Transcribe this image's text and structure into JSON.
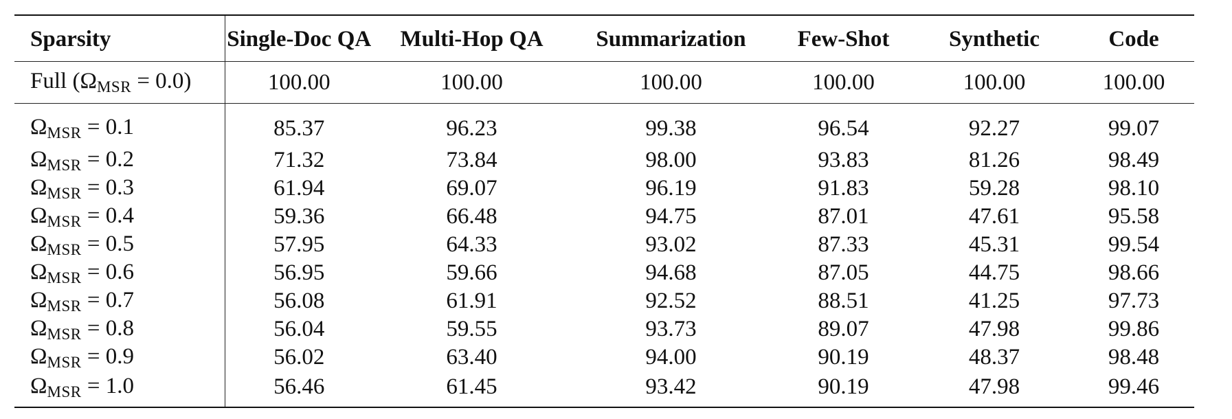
{
  "table": {
    "columns": [
      "Sparsity",
      "Single-Doc QA",
      "Multi-Hop QA",
      "Summarization",
      "Few-Shot",
      "Synthetic",
      "Code"
    ],
    "full_row": {
      "prefix": "Full (",
      "symbol": "Ω",
      "subscript": "MSR",
      "suffix": " = 0.0)",
      "values": [
        "100.00",
        "100.00",
        "100.00",
        "100.00",
        "100.00",
        "100.00"
      ]
    },
    "rows": [
      {
        "symbol": "Ω",
        "subscript": "MSR",
        "level": " = 0.1",
        "values": [
          "85.37",
          "96.23",
          "99.38",
          "96.54",
          "92.27",
          "99.07"
        ]
      },
      {
        "symbol": "Ω",
        "subscript": "MSR",
        "level": " = 0.2",
        "values": [
          "71.32",
          "73.84",
          "98.00",
          "93.83",
          "81.26",
          "98.49"
        ]
      },
      {
        "symbol": "Ω",
        "subscript": "MSR",
        "level": " = 0.3",
        "values": [
          "61.94",
          "69.07",
          "96.19",
          "91.83",
          "59.28",
          "98.10"
        ]
      },
      {
        "symbol": "Ω",
        "subscript": "MSR",
        "level": " = 0.4",
        "values": [
          "59.36",
          "66.48",
          "94.75",
          "87.01",
          "47.61",
          "95.58"
        ]
      },
      {
        "symbol": "Ω",
        "subscript": "MSR",
        "level": " = 0.5",
        "values": [
          "57.95",
          "64.33",
          "93.02",
          "87.33",
          "45.31",
          "99.54"
        ]
      },
      {
        "symbol": "Ω",
        "subscript": "MSR",
        "level": " = 0.6",
        "values": [
          "56.95",
          "59.66",
          "94.68",
          "87.05",
          "44.75",
          "98.66"
        ]
      },
      {
        "symbol": "Ω",
        "subscript": "MSR",
        "level": " = 0.7",
        "values": [
          "56.08",
          "61.91",
          "92.52",
          "88.51",
          "41.25",
          "97.73"
        ]
      },
      {
        "symbol": "Ω",
        "subscript": "MSR",
        "level": " = 0.8",
        "values": [
          "56.04",
          "59.55",
          "93.73",
          "89.07",
          "47.98",
          "99.86"
        ]
      },
      {
        "symbol": "Ω",
        "subscript": "MSR",
        "level": " = 0.9",
        "values": [
          "56.02",
          "63.40",
          "94.00",
          "90.19",
          "48.37",
          "98.48"
        ]
      },
      {
        "symbol": "Ω",
        "subscript": "MSR",
        "level": " = 1.0",
        "values": [
          "56.46",
          "61.45",
          "93.42",
          "90.19",
          "47.98",
          "99.46"
        ]
      }
    ]
  }
}
